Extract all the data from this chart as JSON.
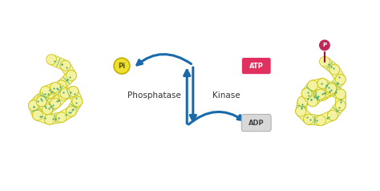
{
  "bg_color": "#ffffff",
  "protein_fill": "#f2f2a0",
  "protein_edge": "#c8c000",
  "tube_fill": "#f0f080",
  "tube_edge": "#b0b000",
  "dot_color": "#50a870",
  "line_color": "#60b878",
  "arrow_color": "#1a6aaa",
  "pi_fill": "#f0de30",
  "pi_edge": "#c0b000",
  "atp_fill": "#e03060",
  "adp_fill": "#d8d8d8",
  "adp_edge": "#aaaaaa",
  "p_fill": "#c02858",
  "p_edge": "#901840",
  "text_dark": "#333333",
  "phosphatase_label": "Phosphatase",
  "kinase_label": "Kinase",
  "pi_label": "Pi",
  "atp_label": "ATP",
  "adp_label": "ADP",
  "p_label": "P",
  "figsize": [
    4.74,
    2.38
  ],
  "dpi": 100
}
